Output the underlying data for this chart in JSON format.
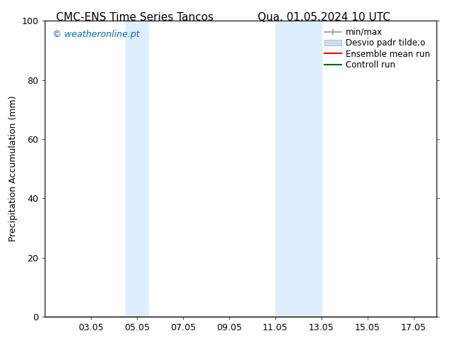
{
  "title_left": "CMC-ENS Time Series Tancos",
  "title_right": "Qua. 01.05.2024 10 UTC",
  "ylabel": "Precipitation Accumulation (mm)",
  "ylim": [
    0,
    100
  ],
  "yticks": [
    0,
    20,
    40,
    60,
    80,
    100
  ],
  "watermark": "© weatheronline.pt",
  "watermark_color": "#0066cc",
  "x_min": 1.0,
  "x_max": 18.0,
  "x_tick_labels": [
    "03.05",
    "05.05",
    "07.05",
    "09.05",
    "11.05",
    "13.05",
    "15.05",
    "17.05"
  ],
  "x_tick_positions": [
    3,
    5,
    7,
    9,
    11,
    13,
    15,
    17
  ],
  "shaded_regions": [
    {
      "start": 4.5,
      "end": 5.5,
      "color": "#ddeeff"
    },
    {
      "start": 11.0,
      "end": 13.0,
      "color": "#ddeeff"
    }
  ],
  "legend_entries": [
    {
      "label": "min/max",
      "color": "#999999"
    },
    {
      "label": "Desvio padr tilde;o",
      "color": "#ccddf0"
    },
    {
      "label": "Ensemble mean run",
      "color": "#ff0000"
    },
    {
      "label": "Controll run",
      "color": "#006600"
    }
  ],
  "bg_color": "#ffffff",
  "title_fontsize": 11,
  "tick_fontsize": 9,
  "legend_fontsize": 8.5,
  "ylabel_fontsize": 9
}
